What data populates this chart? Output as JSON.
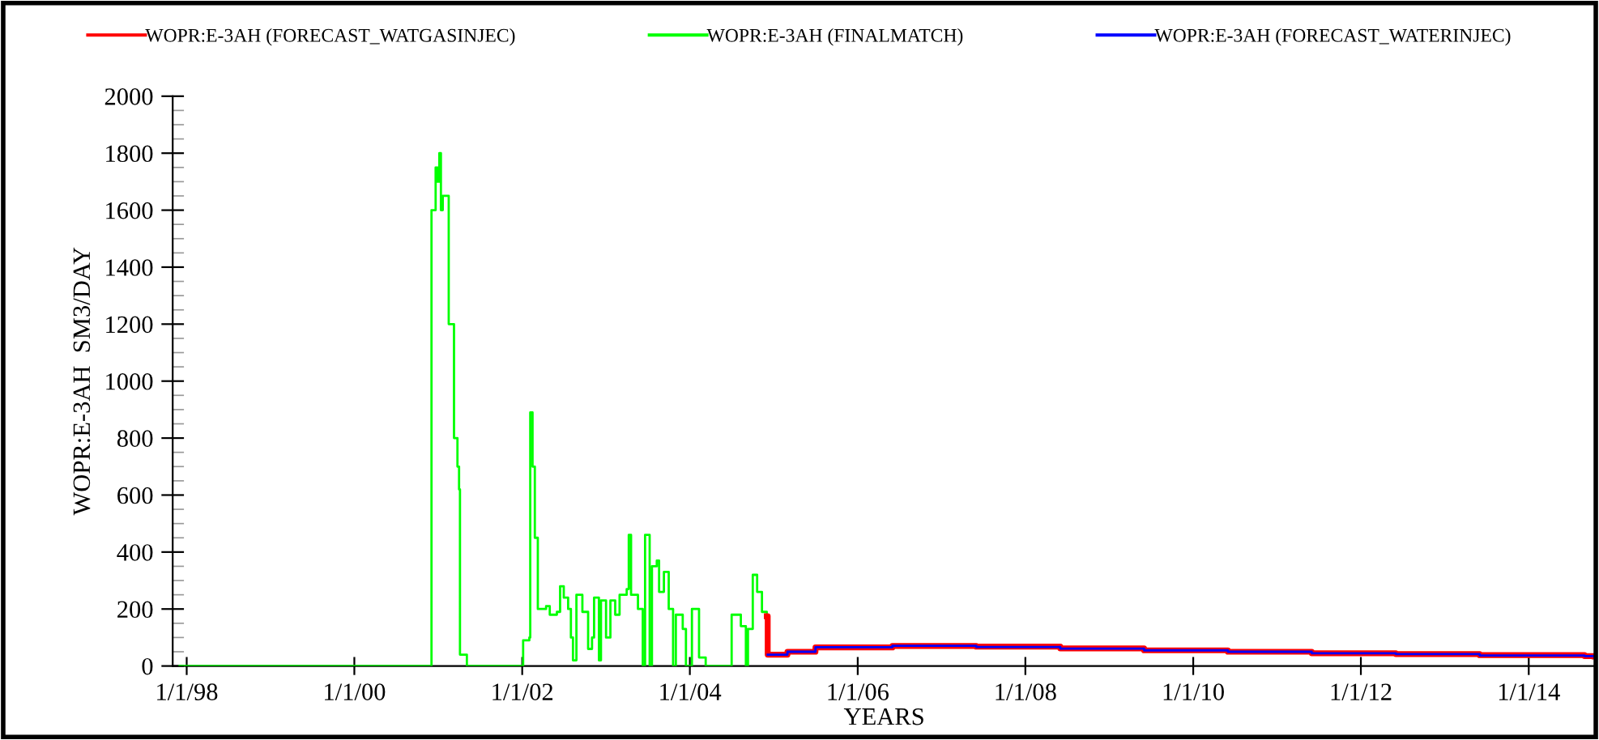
{
  "chart_data": {
    "type": "step",
    "xlabel": "YEARS",
    "ylabel": "WOPR:E-3AH  SM3/DAY",
    "legend": "top",
    "grid": false,
    "marker": "none",
    "line_style": "solid",
    "xlim": [
      "1997-11-01",
      "2014-10-20"
    ],
    "xticks": [
      {
        "value": "1998-01-01",
        "label": "1/1/98"
      },
      {
        "value": "2000-01-01",
        "label": "1/1/00"
      },
      {
        "value": "2002-01-01",
        "label": "1/1/02"
      },
      {
        "value": "2004-01-01",
        "label": "1/1/04"
      },
      {
        "value": "2006-01-01",
        "label": "1/1/06"
      },
      {
        "value": "2008-01-01",
        "label": "1/1/08"
      },
      {
        "value": "2010-01-01",
        "label": "1/1/10"
      },
      {
        "value": "2012-01-01",
        "label": "1/1/12"
      },
      {
        "value": "2014-01-01",
        "label": "1/1/14"
      }
    ],
    "ylim": [
      0,
      2000
    ],
    "yticks": [
      0,
      200,
      400,
      600,
      800,
      1000,
      1200,
      1400,
      1600,
      1800,
      2000
    ],
    "series": [
      {
        "name": "WOPR:E-3AH (FORECAST_WATGASINJEC)",
        "color": "#ff0000",
        "x": [
          "2004-12-01",
          "2004-12-05",
          "2005-03-01",
          "2005-07-01",
          "2006-06-01",
          "2007-06-01",
          "2008-06-01",
          "2009-06-01",
          "2010-06-01",
          "2011-06-01",
          "2012-06-01",
          "2013-06-01",
          "2014-09-01",
          "2014-10-15"
        ],
        "values": [
          175,
          40,
          50,
          65,
          70,
          68,
          62,
          55,
          50,
          45,
          42,
          38,
          35,
          33
        ]
      },
      {
        "name": "WOPR:E-3AH (FINALMATCH)",
        "color": "#00ff00",
        "x": [
          "1997-12-01",
          "2000-12-01",
          "2000-12-02",
          "2000-12-20",
          "2000-12-28",
          "2001-01-05",
          "2001-01-12",
          "2001-01-20",
          "2001-02-15",
          "2001-03-10",
          "2001-03-25",
          "2001-04-01",
          "2001-04-05",
          "2001-05-01",
          "2001-05-05",
          "2002-01-01",
          "2002-01-05",
          "2002-02-01",
          "2002-02-05",
          "2002-02-15",
          "2002-02-25",
          "2002-03-10",
          "2002-04-15",
          "2002-05-01",
          "2002-06-01",
          "2002-06-15",
          "2002-07-01",
          "2002-07-20",
          "2002-08-01",
          "2002-08-10",
          "2002-08-25",
          "2002-09-20",
          "2002-10-15",
          "2002-11-01",
          "2002-11-10",
          "2002-12-01",
          "2002-12-10",
          "2003-01-01",
          "2003-01-20",
          "2003-02-10",
          "2003-03-01",
          "2003-04-01",
          "2003-04-10",
          "2003-04-20",
          "2003-05-20",
          "2003-06-10",
          "2003-06-20",
          "2003-07-10",
          "2003-07-20",
          "2003-08-10",
          "2003-08-20",
          "2003-09-10",
          "2003-10-01",
          "2003-10-20",
          "2003-11-01",
          "2003-12-01",
          "2003-12-15",
          "2004-01-10",
          "2004-02-10",
          "2004-03-10",
          "2004-06-20",
          "2004-07-01",
          "2004-08-10",
          "2004-09-01",
          "2004-09-10",
          "2004-10-01",
          "2004-10-20",
          "2004-11-10",
          "2004-12-01"
        ],
        "values": [
          0,
          0,
          1600,
          1750,
          1700,
          1800,
          1600,
          1650,
          1200,
          800,
          700,
          620,
          40,
          40,
          0,
          0,
          90,
          100,
          890,
          700,
          450,
          200,
          210,
          180,
          190,
          280,
          240,
          200,
          100,
          20,
          250,
          190,
          60,
          100,
          240,
          20,
          230,
          100,
          230,
          180,
          250,
          270,
          460,
          250,
          200,
          0,
          460,
          0,
          350,
          370,
          260,
          330,
          200,
          0,
          180,
          130,
          0,
          200,
          30,
          0,
          0,
          180,
          140,
          0,
          130,
          320,
          260,
          190,
          180
        ]
      },
      {
        "name": "WOPR:E-3AH (FORECAST_WATERINJEC)",
        "color": "#0000ff",
        "x": [
          "2004-12-05",
          "2005-03-01",
          "2005-07-01",
          "2006-06-01",
          "2007-06-01",
          "2008-06-01",
          "2009-06-01",
          "2010-06-01",
          "2011-06-01",
          "2012-06-01",
          "2013-06-01",
          "2014-09-01",
          "2014-10-15"
        ],
        "values": [
          40,
          50,
          66,
          71,
          67,
          61,
          55,
          50,
          45,
          42,
          37,
          35,
          33
        ]
      }
    ]
  }
}
